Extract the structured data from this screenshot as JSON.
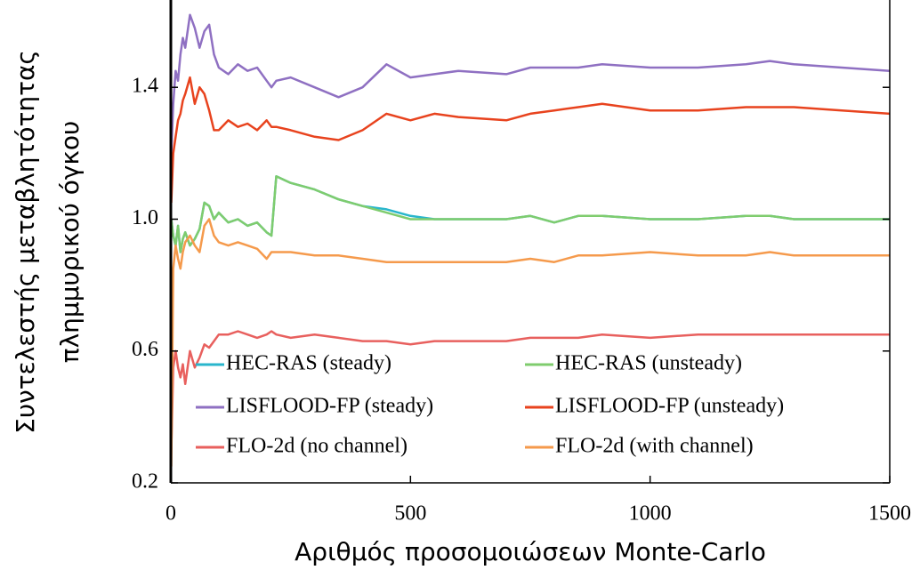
{
  "chart_data": {
    "type": "line",
    "xlabel": "Αριθμός προσομοιώσεων Monte-Carlo",
    "ylabel": [
      "Συντελεστής μεταβλητότητας",
      "πλημμυρικού όγκου"
    ],
    "xlim": [
      0,
      1500
    ],
    "ylim": [
      0.2,
      1.665
    ],
    "xticks": [
      0,
      500,
      1000,
      1500
    ],
    "yticks": [
      0.2,
      0.6,
      {
        "value": 1.0,
        "label": "1.0"
      },
      1.4
    ],
    "legend": "lower left",
    "x": [
      1,
      5,
      10,
      15,
      20,
      25,
      30,
      40,
      50,
      60,
      70,
      80,
      90,
      100,
      120,
      140,
      160,
      180,
      200,
      210,
      220,
      250,
      300,
      350,
      400,
      450,
      500,
      550,
      600,
      700,
      750,
      800,
      850,
      900,
      1000,
      1100,
      1200,
      1250,
      1300,
      1400,
      1500
    ],
    "series": [
      {
        "name": "HEC-RAS (steady)",
        "color": "#29b6cc",
        "values": [
          1.0,
          0.95,
          0.92,
          0.98,
          0.9,
          0.94,
          0.96,
          0.92,
          0.94,
          0.97,
          1.05,
          1.04,
          1.0,
          1.02,
          0.99,
          1.0,
          0.98,
          0.99,
          0.96,
          0.95,
          1.13,
          1.11,
          1.09,
          1.06,
          1.04,
          1.03,
          1.01,
          1.0,
          1.0,
          1.0,
          1.01,
          0.99,
          1.01,
          1.01,
          1.0,
          1.0,
          1.01,
          1.01,
          1.0,
          1.0,
          1.0
        ]
      },
      {
        "name": "HEC-RAS (unsteady)",
        "color": "#7fcc6e",
        "values": [
          1.0,
          0.95,
          0.92,
          0.98,
          0.9,
          0.94,
          0.96,
          0.92,
          0.94,
          0.97,
          1.05,
          1.04,
          1.0,
          1.02,
          0.99,
          1.0,
          0.98,
          0.99,
          0.96,
          0.95,
          1.13,
          1.11,
          1.09,
          1.06,
          1.04,
          1.02,
          1.0,
          1.0,
          1.0,
          1.0,
          1.01,
          0.99,
          1.01,
          1.01,
          1.0,
          1.0,
          1.01,
          1.01,
          1.0,
          1.0,
          1.0
        ]
      },
      {
        "name": "LISFLOOD-FP (steady)",
        "color": "#8f70c2",
        "values": [
          1.2,
          1.35,
          1.45,
          1.42,
          1.5,
          1.55,
          1.52,
          1.62,
          1.58,
          1.52,
          1.57,
          1.59,
          1.5,
          1.46,
          1.44,
          1.47,
          1.45,
          1.46,
          1.42,
          1.4,
          1.42,
          1.43,
          1.4,
          1.37,
          1.4,
          1.47,
          1.43,
          1.44,
          1.45,
          1.44,
          1.46,
          1.46,
          1.46,
          1.47,
          1.46,
          1.46,
          1.47,
          1.48,
          1.47,
          1.46,
          1.45
        ]
      },
      {
        "name": "LISFLOOD-FP (unsteady)",
        "color": "#e8431e",
        "values": [
          1.05,
          1.2,
          1.25,
          1.3,
          1.32,
          1.36,
          1.38,
          1.43,
          1.35,
          1.4,
          1.38,
          1.33,
          1.27,
          1.27,
          1.3,
          1.28,
          1.29,
          1.27,
          1.3,
          1.28,
          1.28,
          1.27,
          1.25,
          1.24,
          1.27,
          1.32,
          1.3,
          1.32,
          1.31,
          1.3,
          1.32,
          1.33,
          1.34,
          1.35,
          1.33,
          1.33,
          1.34,
          1.34,
          1.34,
          1.33,
          1.32
        ]
      },
      {
        "name": "FLO-2d (no channel)",
        "color": "#e8605e",
        "values": [
          0.3,
          0.55,
          0.6,
          0.55,
          0.52,
          0.56,
          0.5,
          0.6,
          0.55,
          0.58,
          0.62,
          0.61,
          0.63,
          0.65,
          0.65,
          0.66,
          0.65,
          0.64,
          0.65,
          0.66,
          0.65,
          0.64,
          0.65,
          0.64,
          0.63,
          0.63,
          0.62,
          0.63,
          0.63,
          0.63,
          0.64,
          0.64,
          0.64,
          0.65,
          0.64,
          0.65,
          0.65,
          0.65,
          0.65,
          0.65,
          0.65
        ]
      },
      {
        "name": "FLO-2d (with channel)",
        "color": "#f59a4c",
        "values": [
          0.25,
          0.85,
          0.92,
          0.88,
          0.85,
          0.9,
          0.93,
          0.95,
          0.92,
          0.9,
          0.98,
          1.0,
          0.95,
          0.93,
          0.92,
          0.93,
          0.92,
          0.91,
          0.88,
          0.9,
          0.9,
          0.9,
          0.89,
          0.89,
          0.88,
          0.87,
          0.87,
          0.87,
          0.87,
          0.87,
          0.88,
          0.87,
          0.89,
          0.89,
          0.9,
          0.89,
          0.89,
          0.9,
          0.89,
          0.89,
          0.89
        ]
      }
    ]
  }
}
